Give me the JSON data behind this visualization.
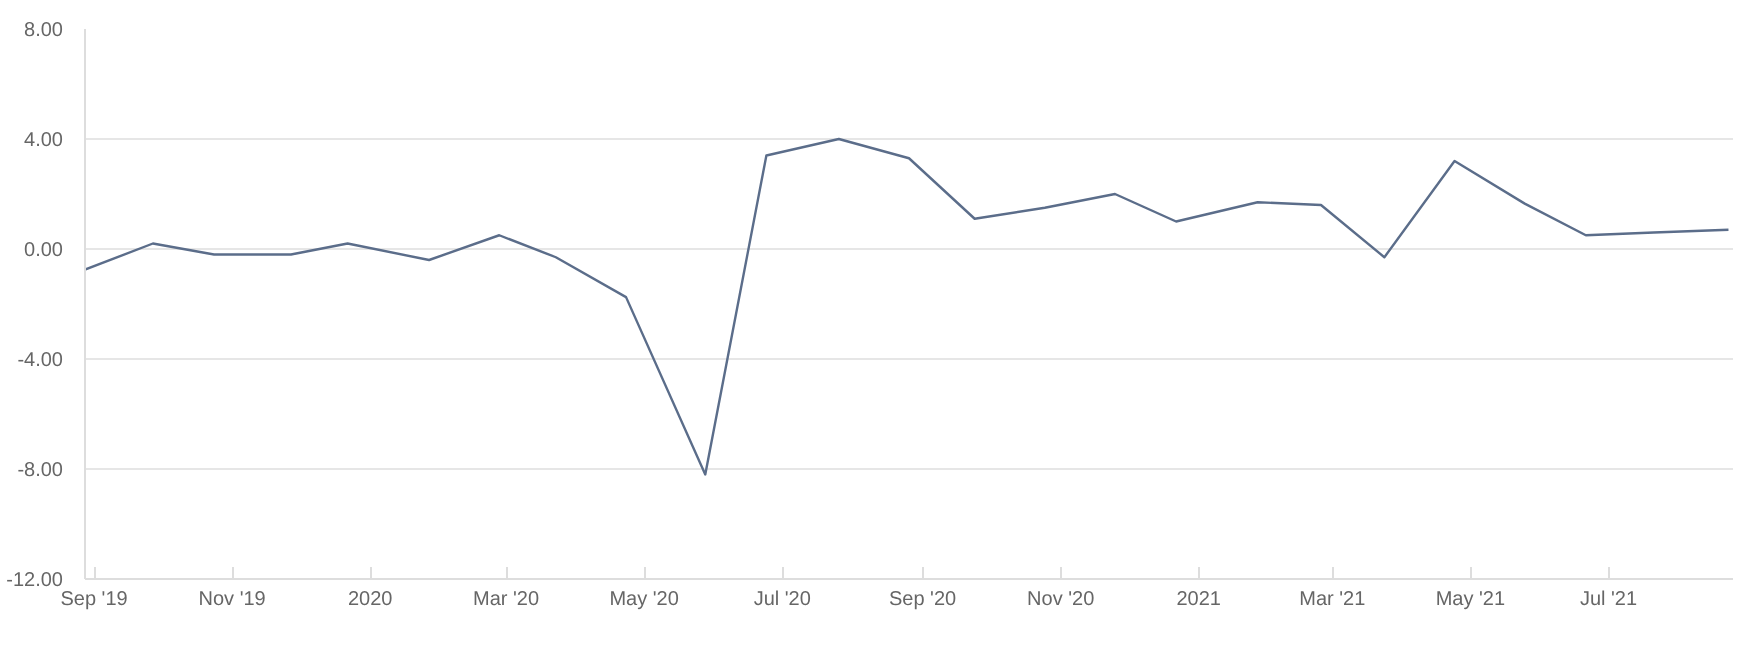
{
  "chart_data": {
    "type": "line",
    "x": [
      "2019-08-28",
      "2019-09-27",
      "2019-10-24",
      "2019-11-27",
      "2019-12-22",
      "2020-01-27",
      "2020-02-27",
      "2020-03-23",
      "2020-04-23",
      "2020-05-28",
      "2020-06-24",
      "2020-07-26",
      "2020-08-26",
      "2020-09-24",
      "2020-10-25",
      "2020-11-25",
      "2020-12-22",
      "2021-01-27",
      "2021-02-24",
      "2021-03-24",
      "2021-04-24",
      "2021-05-25",
      "2021-06-21",
      "2021-07-21",
      "2021-08-23"
    ],
    "series": [
      {
        "color": "#5b6d8a",
        "values": [
          -0.75,
          0.2,
          -0.2,
          -0.2,
          0.2,
          -0.4,
          0.5,
          -0.3,
          -1.75,
          -8.2,
          3.4,
          4.0,
          3.3,
          1.1,
          1.5,
          2.0,
          1.0,
          1.7,
          1.6,
          -0.3,
          3.2,
          1.65,
          0.5,
          0.6,
          0.7
        ]
      }
    ],
    "xlim": [
      "2019-08-28",
      "2021-08-25"
    ],
    "xticks": [
      {
        "value": "2019-09-01",
        "label": "Sep '19"
      },
      {
        "value": "2019-11-01",
        "label": "Nov '19"
      },
      {
        "value": "2020-01-01",
        "label": "2020"
      },
      {
        "value": "2020-03-01",
        "label": "Mar '20"
      },
      {
        "value": "2020-05-01",
        "label": "May '20"
      },
      {
        "value": "2020-07-01",
        "label": "Jul '20"
      },
      {
        "value": "2020-09-01",
        "label": "Sep '20"
      },
      {
        "value": "2020-11-01",
        "label": "Nov '20"
      },
      {
        "value": "2021-01-01",
        "label": "2021"
      },
      {
        "value": "2021-03-01",
        "label": "Mar '21"
      },
      {
        "value": "2021-05-01",
        "label": "May '21"
      },
      {
        "value": "2021-07-01",
        "label": "Jul '21"
      }
    ],
    "ylim": [
      -12,
      8
    ],
    "yticks": [
      {
        "value": -12,
        "label": "-12.00"
      },
      {
        "value": -8,
        "label": "-8.00"
      },
      {
        "value": -4,
        "label": "-4.00"
      },
      {
        "value": 0,
        "label": "0.00"
      },
      {
        "value": 4,
        "label": "4.00"
      },
      {
        "value": 8,
        "label": "8.00"
      }
    ],
    "grid": "y",
    "marker": "none",
    "line_style": "solid"
  }
}
